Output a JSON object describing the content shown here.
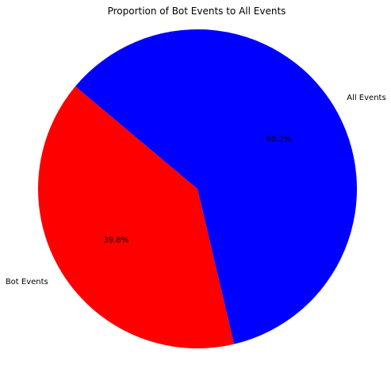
{
  "chart_data": {
    "type": "pie",
    "title": "Proportion of Bot Events to All Events",
    "labels": [
      "Bot Events",
      "All Events"
    ],
    "values": [
      39.8,
      60.2
    ],
    "percent_labels": [
      "39.8%",
      "60.2%"
    ],
    "colors": [
      "#ff0000",
      "#0000ff"
    ],
    "start_angle_deg": 140,
    "direction": "counterclockwise"
  }
}
